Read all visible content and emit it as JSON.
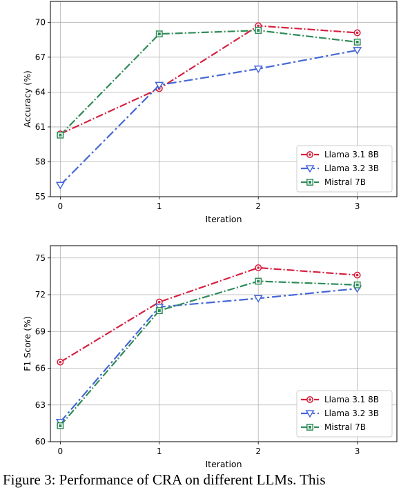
{
  "caption": "Figure 3: Performance of CRA on different LLMs. This",
  "colors": {
    "Llama 3.1 8B": "#d6203f",
    "Llama 3.2 3B": "#4466d8",
    "Mistral 7B": "#2e8b57"
  },
  "chart_data": [
    {
      "type": "line",
      "xlabel": "Iteration",
      "ylabel": "Accuracy (%)",
      "x": [
        0,
        1,
        2,
        3
      ],
      "xlim": [
        -0.1,
        3.4
      ],
      "ylim": [
        55,
        71.8
      ],
      "yticks": [
        55,
        58,
        61,
        64,
        67,
        70
      ],
      "grid": true,
      "legend_position": "lower-right",
      "series": [
        {
          "name": "Llama 3.1 8B",
          "marker": "circle",
          "values": [
            60.4,
            64.3,
            69.7,
            69.1
          ]
        },
        {
          "name": "Llama 3.2 3B",
          "marker": "triangle-down",
          "values": [
            56.0,
            64.6,
            66.0,
            67.6
          ]
        },
        {
          "name": "Mistral 7B",
          "marker": "square",
          "values": [
            60.3,
            69.0,
            69.3,
            68.3
          ]
        }
      ]
    },
    {
      "type": "line",
      "xlabel": "Iteration",
      "ylabel": "F1 Score (%)",
      "x": [
        0,
        1,
        2,
        3
      ],
      "xlim": [
        -0.1,
        3.4
      ],
      "ylim": [
        60,
        76.0
      ],
      "yticks": [
        60,
        63,
        66,
        69,
        72,
        75
      ],
      "grid": true,
      "legend_position": "lower-right",
      "series": [
        {
          "name": "Llama 3.1 8B",
          "marker": "circle",
          "values": [
            66.5,
            71.4,
            74.2,
            73.6
          ]
        },
        {
          "name": "Llama 3.2 3B",
          "marker": "triangle-down",
          "values": [
            61.6,
            71.0,
            71.7,
            72.5
          ]
        },
        {
          "name": "Mistral 7B",
          "marker": "square",
          "values": [
            61.3,
            70.7,
            73.1,
            72.8
          ]
        }
      ]
    }
  ]
}
